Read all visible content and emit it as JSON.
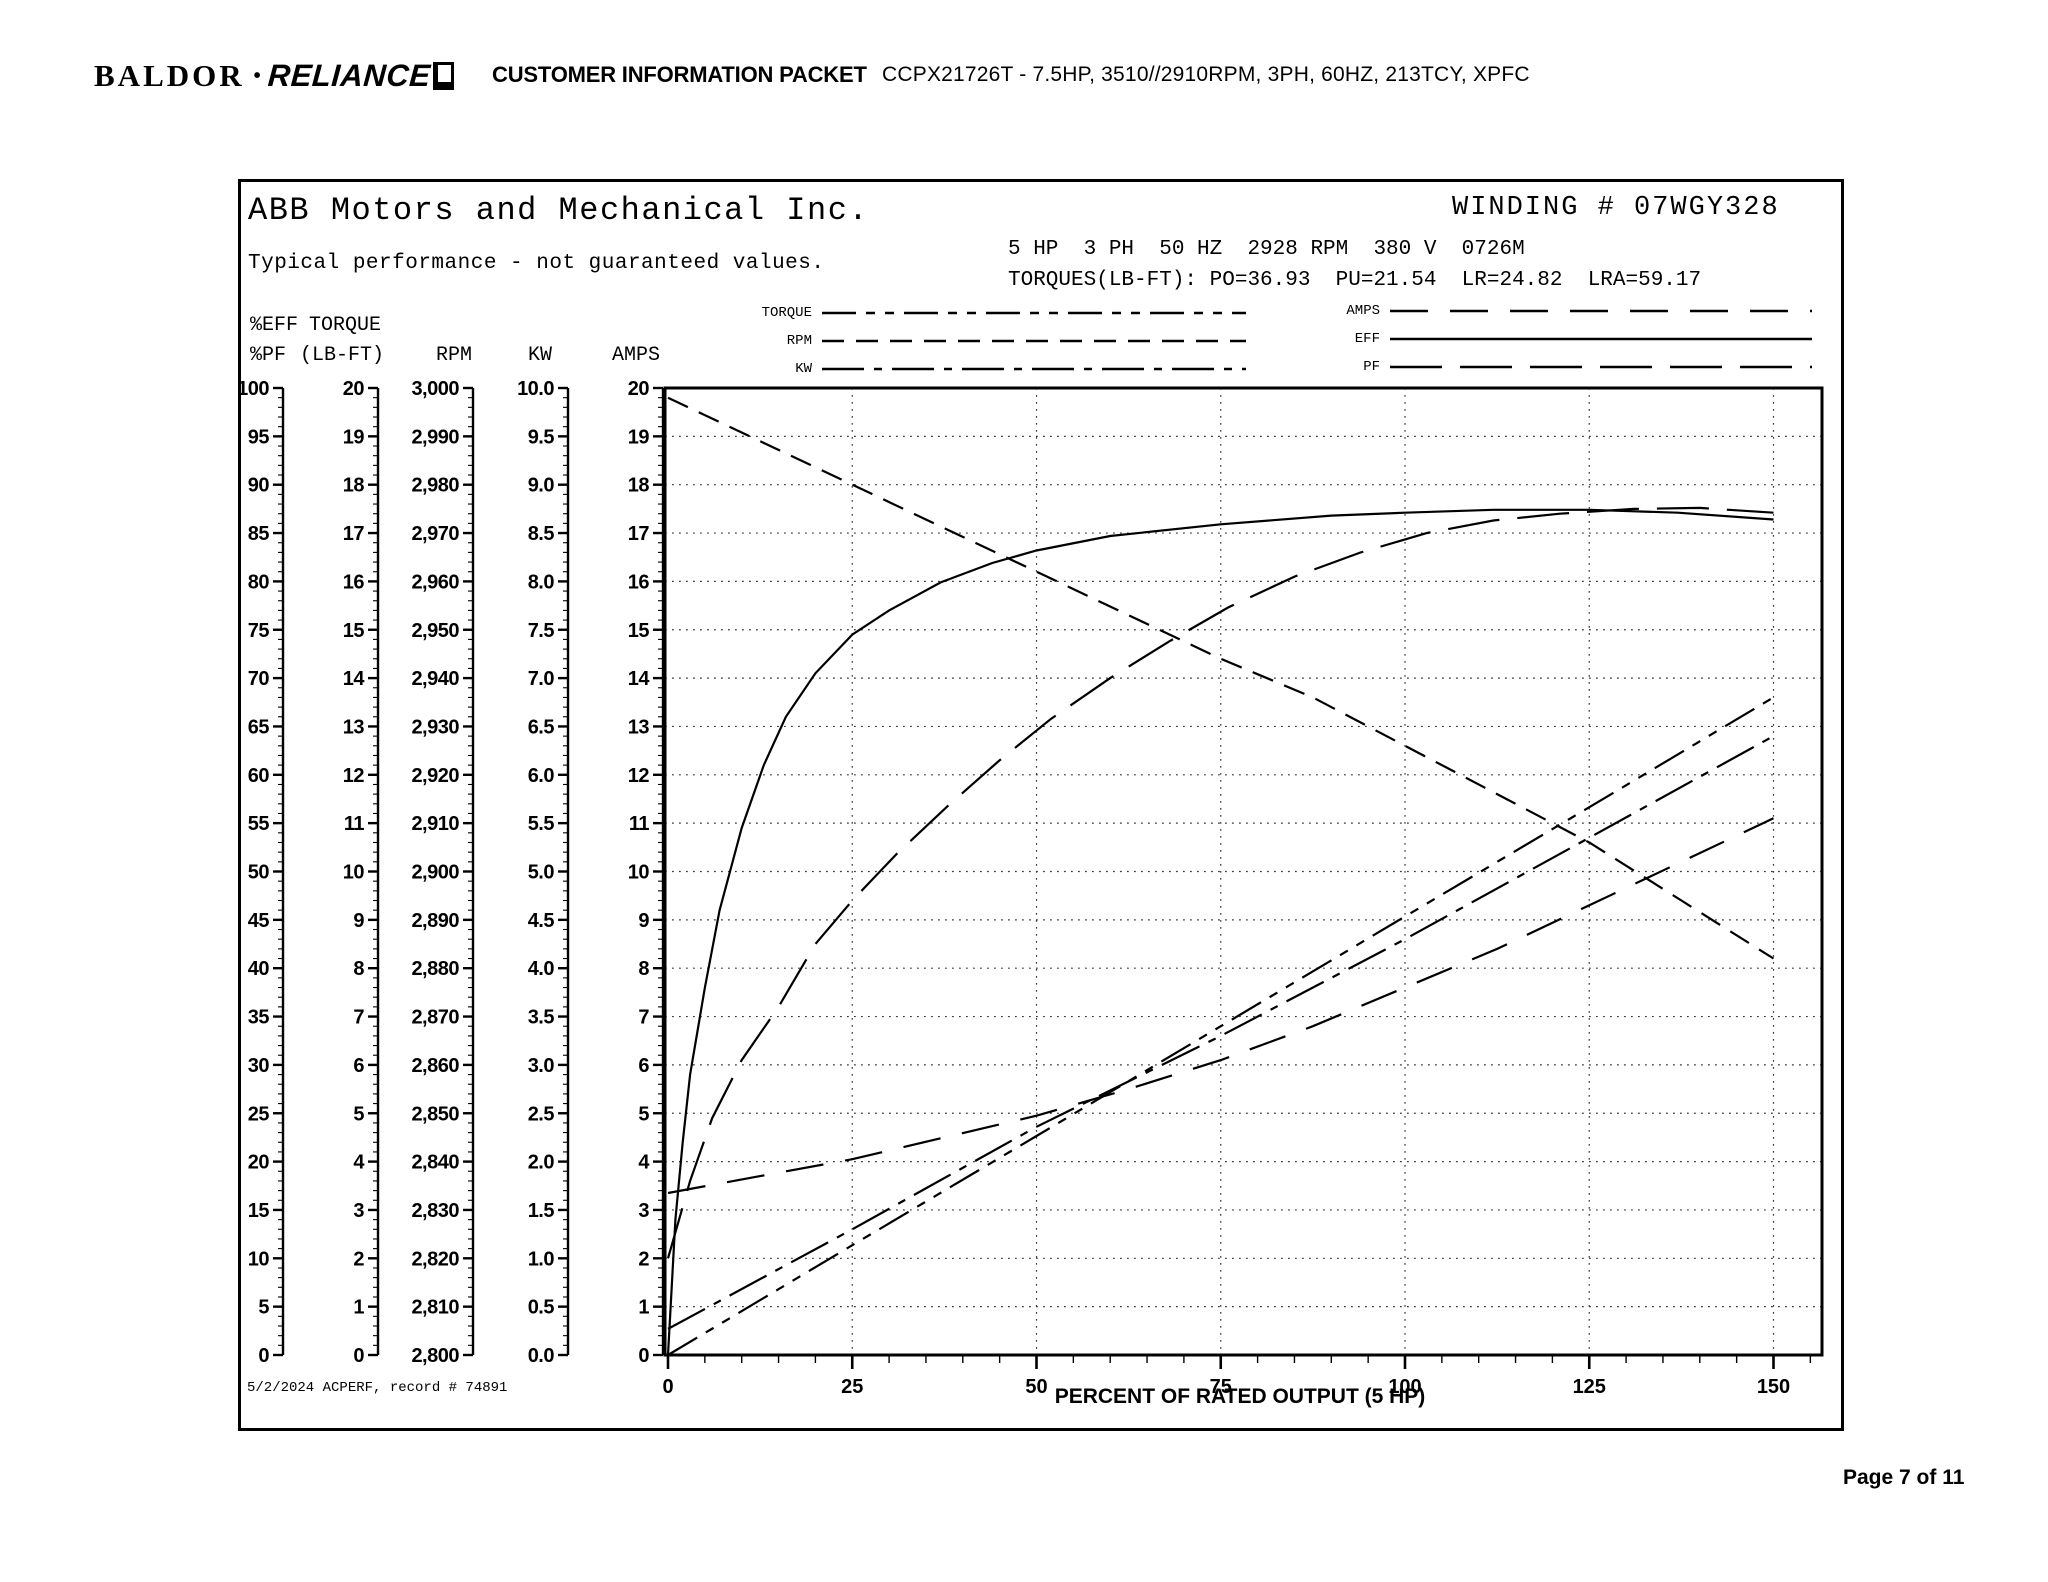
{
  "header": {
    "logo": {
      "baldor": "BALDOR",
      "separator": "•",
      "reliance": "RELIANCE"
    },
    "packet_title": "CUSTOMER INFORMATION PACKET",
    "model_line": "CCPX21726T - 7.5HP, 3510//2910RPM, 3PH, 60HZ, 213TCY, XPFC"
  },
  "panel": {
    "company": "ABB Motors and Mechanical Inc.",
    "winding": "WINDING # 07WGY328",
    "disclaimer": "Typical performance - not guaranteed values.",
    "spec_line": "5 HP  3 PH  50 HZ  2928 RPM  380 V  0726M",
    "torques_line": "TORQUES(LB-FT): PO=36.93  PU=21.54  LR=24.82  LRA=59.17",
    "record_note": "5/2/2024 ACPERF, record # 74891"
  },
  "legend": {
    "left": [
      {
        "key": "torque",
        "label": "TORQUE"
      },
      {
        "key": "rpm",
        "label": "RPM"
      },
      {
        "key": "kw",
        "label": "KW"
      }
    ],
    "right": [
      {
        "key": "amps",
        "label": "AMPS"
      },
      {
        "key": "eff",
        "label": "EFF"
      },
      {
        "key": "pf",
        "label": "PF"
      }
    ]
  },
  "axes": {
    "y": [
      {
        "key": "effpf",
        "header_lines": [
          "%EFF",
          "%PF"
        ],
        "labels": [
          "100",
          "95",
          "90",
          "85",
          "80",
          "75",
          "70",
          "65",
          "60",
          "55",
          "50",
          "45",
          "40",
          "35",
          "30",
          "25",
          "20",
          "15",
          "10",
          "5",
          "0"
        ]
      },
      {
        "key": "torque",
        "header_lines": [
          "TORQUE",
          "(LB-FT)"
        ],
        "labels": [
          "20",
          "19",
          "18",
          "17",
          "16",
          "15",
          "14",
          "13",
          "12",
          "11",
          "10",
          "9",
          "8",
          "7",
          "6",
          "5",
          "4",
          "3",
          "2",
          "1",
          "0"
        ]
      },
      {
        "key": "rpm",
        "header_lines": [
          "",
          "RPM"
        ],
        "labels": [
          "3,000",
          "2,990",
          "2,980",
          "2,970",
          "2,960",
          "2,950",
          "2,940",
          "2,930",
          "2,920",
          "2,910",
          "2,900",
          "2,890",
          "2,880",
          "2,870",
          "2,860",
          "2,850",
          "2,840",
          "2,830",
          "2,820",
          "2,810",
          "2,800"
        ]
      },
      {
        "key": "kw",
        "header_lines": [
          "",
          "KW"
        ],
        "labels": [
          "10.0",
          "9.5",
          "9.0",
          "8.5",
          "8.0",
          "7.5",
          "7.0",
          "6.5",
          "6.0",
          "5.5",
          "5.0",
          "4.5",
          "4.0",
          "3.5",
          "3.0",
          "2.5",
          "2.0",
          "1.5",
          "1.0",
          "0.5",
          "0.0"
        ]
      },
      {
        "key": "amps",
        "header_lines": [
          "",
          "AMPS"
        ],
        "labels": [
          "20",
          "19",
          "18",
          "17",
          "16",
          "15",
          "14",
          "13",
          "12",
          "11",
          "10",
          "9",
          "8",
          "7",
          "6",
          "5",
          "4",
          "3",
          "2",
          "1",
          "0"
        ]
      }
    ],
    "x": {
      "title": "PERCENT OF RATED OUTPUT (5 HP)",
      "labels": [
        "0",
        "25",
        "50",
        "75",
        "100",
        "125",
        "150"
      ]
    }
  },
  "chart_data": {
    "type": "line",
    "title": "Typical performance - not guaranteed values",
    "xlabel": "PERCENT OF RATED OUTPUT (5 HP)",
    "x_range": [
      0,
      150
    ],
    "grid": true,
    "y_axes": {
      "eff_pf": {
        "label": "%EFF / %PF",
        "range": [
          0,
          100
        ]
      },
      "torque": {
        "label": "TORQUE (LB-FT)",
        "range": [
          0,
          20
        ]
      },
      "rpm": {
        "label": "RPM",
        "range": [
          2800,
          3000
        ]
      },
      "kw": {
        "label": "KW",
        "range": [
          0,
          10
        ]
      },
      "amps": {
        "label": "AMPS",
        "range": [
          0,
          20
        ]
      }
    },
    "series": [
      {
        "name": "TORQUE",
        "key": "torque",
        "axis": "torque",
        "points": [
          [
            0,
            0
          ],
          [
            25,
            2.27
          ],
          [
            50,
            4.53
          ],
          [
            75,
            6.8
          ],
          [
            100,
            9.07
          ],
          [
            125,
            11.33
          ],
          [
            150,
            13.6
          ]
        ]
      },
      {
        "name": "RPM",
        "key": "rpm",
        "axis": "rpm",
        "points": [
          [
            0,
            2998
          ],
          [
            12.5,
            2989
          ],
          [
            25,
            2980
          ],
          [
            37.5,
            2971
          ],
          [
            50,
            2962
          ],
          [
            62.5,
            2953
          ],
          [
            75,
            2944
          ],
          [
            87.5,
            2936
          ],
          [
            100,
            2926
          ],
          [
            112.5,
            2916
          ],
          [
            125,
            2906
          ],
          [
            137.5,
            2894
          ],
          [
            150,
            2882
          ]
        ]
      },
      {
        "name": "KW",
        "key": "kw",
        "axis": "kw",
        "points": [
          [
            0,
            0.27
          ],
          [
            25,
            1.3
          ],
          [
            50,
            2.36
          ],
          [
            75,
            3.3
          ],
          [
            100,
            4.3
          ],
          [
            125,
            5.35
          ],
          [
            150,
            6.4
          ]
        ]
      },
      {
        "name": "AMPS",
        "key": "amps",
        "axis": "amps",
        "points": [
          [
            0,
            3.35
          ],
          [
            12.5,
            3.7
          ],
          [
            25,
            4.05
          ],
          [
            37.5,
            4.5
          ],
          [
            50,
            4.95
          ],
          [
            62.5,
            5.5
          ],
          [
            75,
            6.1
          ],
          [
            87.5,
            6.8
          ],
          [
            100,
            7.6
          ],
          [
            112.5,
            8.4
          ],
          [
            125,
            9.3
          ],
          [
            137.5,
            10.2
          ],
          [
            150,
            11.1
          ]
        ]
      },
      {
        "name": "EFF",
        "key": "eff",
        "axis": "eff_pf",
        "points": [
          [
            0,
            0
          ],
          [
            1,
            14
          ],
          [
            2,
            22
          ],
          [
            3,
            29
          ],
          [
            5,
            38
          ],
          [
            7,
            46
          ],
          [
            10,
            54.5
          ],
          [
            13,
            61
          ],
          [
            16,
            66
          ],
          [
            20,
            70.5
          ],
          [
            25,
            74.5
          ],
          [
            30,
            77
          ],
          [
            37,
            79.9
          ],
          [
            44,
            81.9
          ],
          [
            50,
            83.2
          ],
          [
            60,
            84.7
          ],
          [
            75,
            85.9
          ],
          [
            90,
            86.8
          ],
          [
            100,
            87.1
          ],
          [
            112,
            87.4
          ],
          [
            125,
            87.4
          ],
          [
            137,
            87.1
          ],
          [
            150,
            86.4
          ]
        ]
      },
      {
        "name": "PF",
        "key": "pf",
        "axis": "eff_pf",
        "points": [
          [
            0,
            10
          ],
          [
            3,
            18
          ],
          [
            6,
            24.5
          ],
          [
            10,
            30.5
          ],
          [
            15,
            36
          ],
          [
            20,
            42.5
          ],
          [
            25,
            47
          ],
          [
            31,
            51.8
          ],
          [
            38,
            56.8
          ],
          [
            45,
            61.5
          ],
          [
            52,
            65.8
          ],
          [
            60,
            70
          ],
          [
            68,
            73.8
          ],
          [
            76,
            77.3
          ],
          [
            85,
            80.5
          ],
          [
            94,
            83
          ],
          [
            103,
            85
          ],
          [
            112,
            86.3
          ],
          [
            121,
            87
          ],
          [
            131,
            87.5
          ],
          [
            140,
            87.6
          ],
          [
            150,
            87.1
          ]
        ]
      }
    ]
  },
  "footer": {
    "page_label": "Page 7 of 11"
  }
}
